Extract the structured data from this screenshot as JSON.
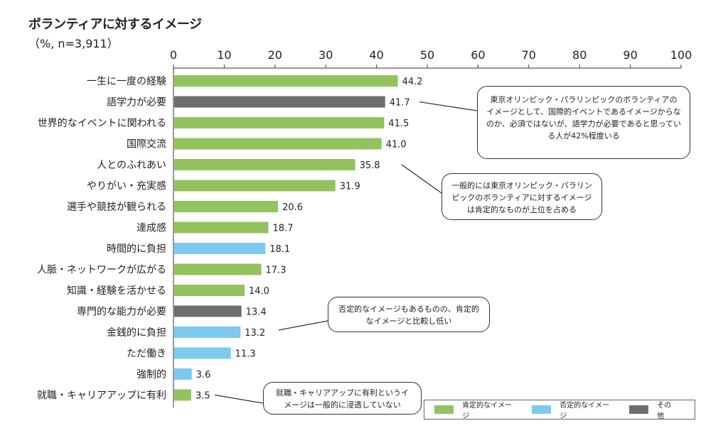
{
  "title": "ボランティアに対するイメージ",
  "subtitle": "（%, n=3,911）",
  "colors": {
    "positive": "#93c35f",
    "negative": "#7dc9ef",
    "other": "#6d6d6d"
  },
  "legend": [
    {
      "key": "positive",
      "label": "肯定的なイメージ"
    },
    {
      "key": "negative",
      "label": "否定的なイメージ"
    },
    {
      "key": "other",
      "label": "その他"
    }
  ],
  "callouts": [
    {
      "text": "東京オリンピック・パラリンピックのボランティアのイメージとして、国際的イベントであるイメージからなのか、必須ではないが、語学力が必要であると思っている人が42%程度いる"
    },
    {
      "text": "一般的には東京オリンピック・パラリンピックのボランティアに対するイメージは肯定的なものが上位を占める"
    },
    {
      "text": "否定的なイメージもあるものの、肯定的なイメージと比較し低い"
    },
    {
      "text": "就職・キャリアアップに有利というイメージは一般的に浸透していない"
    }
  ],
  "chart_data": {
    "type": "bar",
    "orientation": "horizontal",
    "title": "ボランティアに対するイメージ",
    "subtitle": "（%, n=3,911）",
    "xlim": [
      0,
      100
    ],
    "xticks": [
      0,
      10,
      20,
      30,
      40,
      50,
      60,
      70,
      80,
      90,
      100
    ],
    "categories": [
      "一生に一度の経験",
      "語学力が必要",
      "世界的なイベントに関われる",
      "国際交流",
      "人とのふれあい",
      "やりがい・充実感",
      "選手や競技が観られる",
      "達成感",
      "時間的に負担",
      "人脈・ネットワークが広がる",
      "知識・経験を活かせる",
      "専門的な能力が必要",
      "金銭的に負担",
      "ただ働き",
      "強制的",
      "就職・キャリアアップに有利"
    ],
    "values": [
      44.2,
      41.7,
      41.5,
      41.0,
      35.8,
      31.9,
      20.6,
      18.7,
      18.1,
      17.3,
      14.0,
      13.4,
      13.2,
      11.3,
      3.6,
      3.5
    ],
    "value_labels": [
      "44.2",
      "41.7",
      "41.5",
      "41.0",
      "35.8",
      "31.9",
      "20.6",
      "18.7",
      "18.1",
      "17.3",
      "14.0",
      "13.4",
      "13.2",
      "11.3",
      "3.6",
      "3.5"
    ],
    "groups": [
      "positive",
      "other",
      "positive",
      "positive",
      "positive",
      "positive",
      "positive",
      "positive",
      "negative",
      "positive",
      "positive",
      "other",
      "negative",
      "negative",
      "negative",
      "positive"
    ],
    "legend_position": "bottom-right"
  }
}
